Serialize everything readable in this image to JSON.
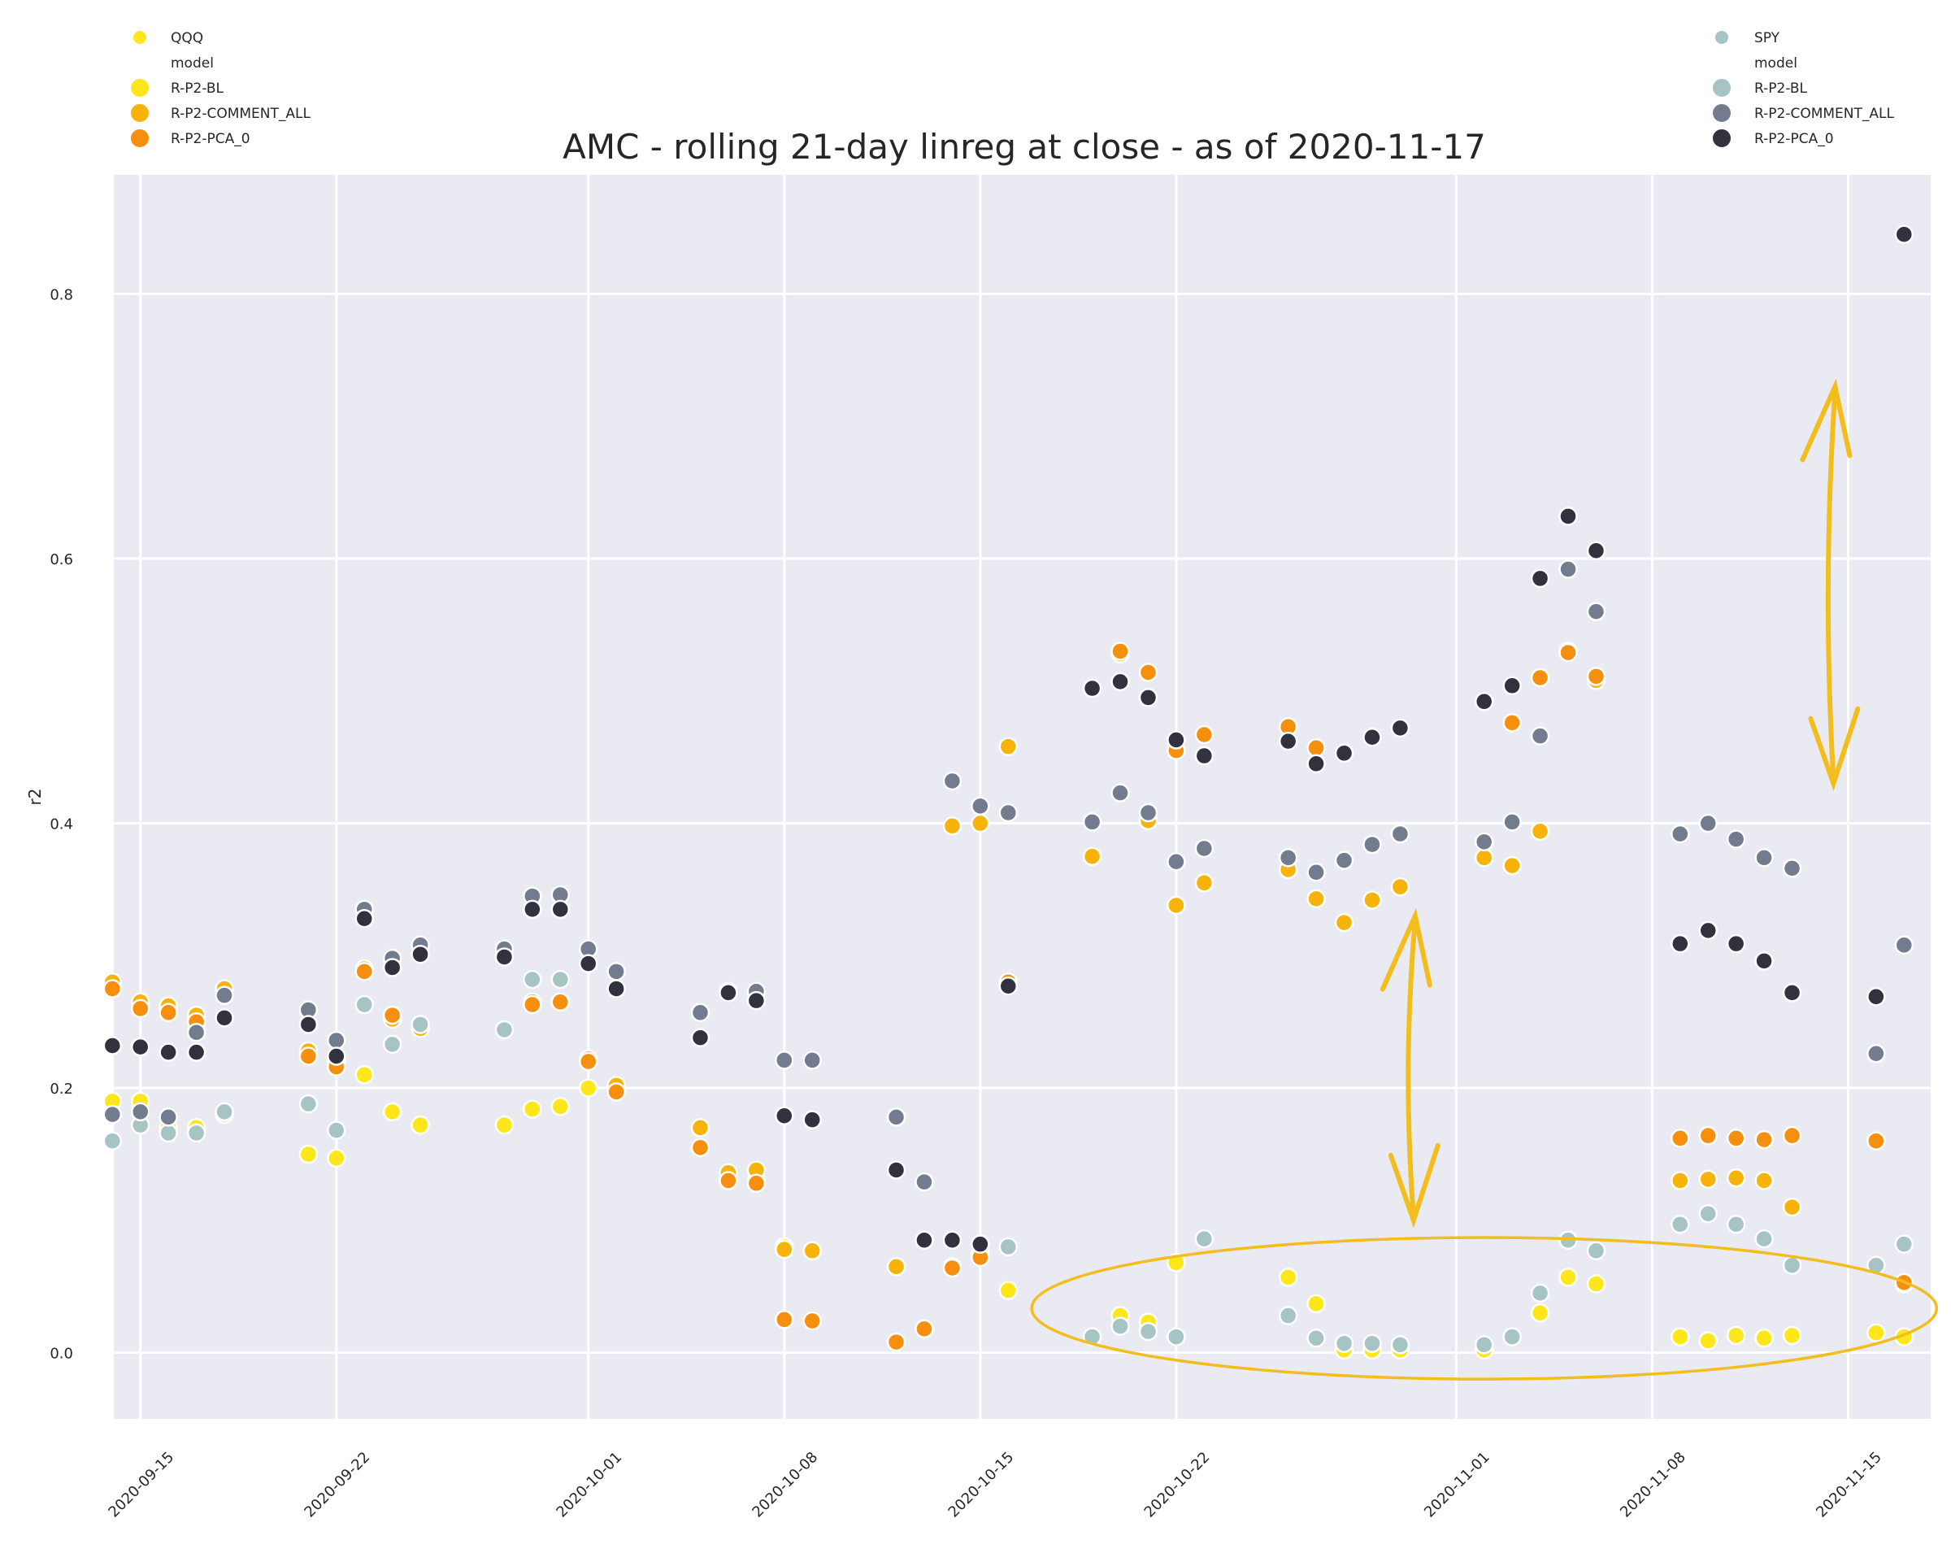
{
  "chart_data": {
    "type": "scatter",
    "title": "AMC - rolling 21-day linreg at close - as of 2020-11-17",
    "xlabel": "",
    "ylabel": "r2",
    "ylim": [
      -0.05,
      0.89
    ],
    "xlim": [
      "2020-09-14",
      "2020-11-17"
    ],
    "grid": true,
    "x_ticks": [
      "2020-09-15",
      "2020-09-22",
      "2020-10-01",
      "2020-10-08",
      "2020-10-15",
      "2020-10-22",
      "2020-11-01",
      "2020-11-08",
      "2020-11-15"
    ],
    "y_ticks": [
      0.0,
      0.2,
      0.4,
      0.6,
      0.8
    ],
    "y_tick_labels": [
      "0.0",
      "0.2",
      "0.4",
      "0.6",
      "0.8"
    ],
    "dates": [
      "2020-09-14",
      "2020-09-15",
      "2020-09-16",
      "2020-09-17",
      "2020-09-18",
      "2020-09-21",
      "2020-09-22",
      "2020-09-23",
      "2020-09-24",
      "2020-09-25",
      "2020-09-28",
      "2020-09-29",
      "2020-09-30",
      "2020-10-01",
      "2020-10-02",
      "2020-10-05",
      "2020-10-06",
      "2020-10-07",
      "2020-10-08",
      "2020-10-09",
      "2020-10-12",
      "2020-10-13",
      "2020-10-14",
      "2020-10-15",
      "2020-10-16",
      "2020-10-19",
      "2020-10-20",
      "2020-10-21",
      "2020-10-22",
      "2020-10-23",
      "2020-10-26",
      "2020-10-27",
      "2020-10-28",
      "2020-10-29",
      "2020-10-30",
      "2020-11-02",
      "2020-11-03",
      "2020-11-04",
      "2020-11-05",
      "2020-11-06",
      "2020-11-09",
      "2020-11-10",
      "2020-11-11",
      "2020-11-12",
      "2020-11-13",
      "2020-11-16",
      "2020-11-17"
    ],
    "legends": [
      {
        "position": "top-left",
        "header": "QQQ",
        "subheader": "model",
        "entries": [
          {
            "name": "R-P2-BL",
            "color": "#fde619"
          },
          {
            "name": "R-P2-COMMENT_ALL",
            "color": "#f8b30b"
          },
          {
            "name": "R-P2-PCA_0",
            "color": "#f58f0d"
          }
        ]
      },
      {
        "position": "top-right",
        "header": "SPY",
        "subheader": "model",
        "entries": [
          {
            "name": "R-P2-BL",
            "color": "#a7c4c4"
          },
          {
            "name": "R-P2-COMMENT_ALL",
            "color": "#737c8e"
          },
          {
            "name": "R-P2-PCA_0",
            "color": "#32323f"
          }
        ]
      }
    ],
    "series": [
      {
        "benchmark": "QQQ",
        "model": "R-P2-BL",
        "color": "#fde619",
        "values": [
          0.19,
          0.19,
          0.17,
          0.17,
          0.18,
          0.15,
          0.147,
          0.21,
          0.182,
          0.172,
          0.172,
          0.184,
          0.186,
          0.2,
          0.2,
          0.17,
          0.13,
          0.13,
          0.08,
          0.077,
          0.065,
          0.018,
          0.065,
          0.075,
          0.047,
          0.012,
          0.028,
          0.023,
          0.068,
          null,
          0.057,
          0.037,
          0.002,
          0.002,
          0.002,
          0.002,
          0.012,
          0.03,
          0.057,
          0.052,
          0.012,
          0.009,
          0.013,
          0.011,
          0.013,
          0.015,
          0.012
        ]
      },
      {
        "benchmark": "QQQ",
        "model": "R-P2-COMMENT_ALL",
        "color": "#f8b30b",
        "values": [
          0.28,
          0.265,
          0.262,
          0.255,
          0.275,
          0.228,
          0.22,
          0.29,
          0.252,
          0.245,
          null,
          0.265,
          0.265,
          0.222,
          0.202,
          0.17,
          0.136,
          0.138,
          0.078,
          0.077,
          0.065,
          0.018,
          0.398,
          0.4,
          0.458,
          0.375,
          0.528,
          0.402,
          0.338,
          0.355,
          0.365,
          0.343,
          0.325,
          0.342,
          0.352,
          0.374,
          0.368,
          0.394,
          0.53,
          0.508,
          0.13,
          0.131,
          0.132,
          0.13,
          0.11,
          0.16,
          0.052
        ]
      },
      {
        "benchmark": "QQQ",
        "model": "R-P2-PCA_0",
        "color": "#f58f0d",
        "values": [
          0.275,
          0.26,
          0.257,
          0.25,
          null,
          0.224,
          0.216,
          0.288,
          0.255,
          null,
          null,
          0.263,
          0.265,
          0.22,
          0.197,
          0.155,
          0.13,
          0.128,
          0.025,
          0.024,
          0.008,
          0.018,
          0.064,
          0.072,
          0.28,
          null,
          0.53,
          0.514,
          0.455,
          0.467,
          0.473,
          0.457,
          null,
          null,
          null,
          null,
          0.476,
          0.51,
          0.529,
          0.511,
          0.162,
          0.164,
          0.162,
          0.161,
          0.164,
          0.16,
          0.053
        ]
      },
      {
        "benchmark": "SPY",
        "model": "R-P2-BL",
        "color": "#a7c4c4",
        "values": [
          0.16,
          0.172,
          0.166,
          0.166,
          0.182,
          0.188,
          0.168,
          0.263,
          0.233,
          0.248,
          0.244,
          0.282,
          0.282,
          null,
          null,
          null,
          null,
          null,
          null,
          null,
          null,
          null,
          null,
          null,
          0.08,
          0.012,
          0.02,
          0.016,
          0.012,
          0.086,
          0.028,
          0.011,
          0.007,
          0.007,
          0.006,
          0.006,
          0.012,
          0.045,
          0.085,
          0.077,
          0.097,
          0.105,
          0.097,
          0.086,
          0.066,
          0.066,
          0.082
        ]
      },
      {
        "benchmark": "SPY",
        "model": "R-P2-COMMENT_ALL",
        "color": "#737c8e",
        "values": [
          0.18,
          0.182,
          0.178,
          0.242,
          0.27,
          0.259,
          0.236,
          0.335,
          0.298,
          0.308,
          0.305,
          0.345,
          0.346,
          0.305,
          0.288,
          0.257,
          0.273,
          0.273,
          0.221,
          0.221,
          0.178,
          0.129,
          0.432,
          0.413,
          0.408,
          0.401,
          0.423,
          0.408,
          0.371,
          0.381,
          0.374,
          0.363,
          0.372,
          0.384,
          0.392,
          0.386,
          0.401,
          0.466,
          0.592,
          0.56,
          0.392,
          0.4,
          0.388,
          0.374,
          0.366,
          0.226,
          0.308
        ]
      },
      {
        "benchmark": "SPY",
        "model": "R-P2-PCA_0",
        "color": "#32323f",
        "values": [
          0.232,
          0.231,
          0.227,
          0.227,
          0.253,
          0.248,
          0.224,
          0.328,
          0.291,
          0.301,
          0.299,
          0.335,
          0.335,
          0.294,
          0.275,
          0.238,
          0.272,
          0.266,
          0.179,
          0.176,
          0.138,
          0.085,
          0.085,
          0.082,
          0.277,
          0.502,
          0.507,
          0.495,
          0.463,
          0.451,
          0.462,
          0.445,
          0.453,
          0.465,
          0.472,
          0.492,
          0.504,
          0.585,
          0.632,
          0.606,
          0.309,
          0.319,
          0.309,
          0.296,
          0.272,
          0.269,
          0.845
        ]
      }
    ],
    "annotations": [
      {
        "type": "ellipse",
        "color": "#f2bd1d",
        "x_range": [
          "2020-10-18",
          "2020-11-17"
        ],
        "y_range": [
          -0.02,
          0.087
        ]
      },
      {
        "type": "double-arrow",
        "color": "#f2bd1d",
        "x": "2020-10-31",
        "y_range": [
          0.1,
          0.33
        ]
      },
      {
        "type": "double-arrow",
        "color": "#f2bd1d",
        "x": "2020-11-15",
        "y_range": [
          0.43,
          0.73
        ]
      }
    ]
  }
}
